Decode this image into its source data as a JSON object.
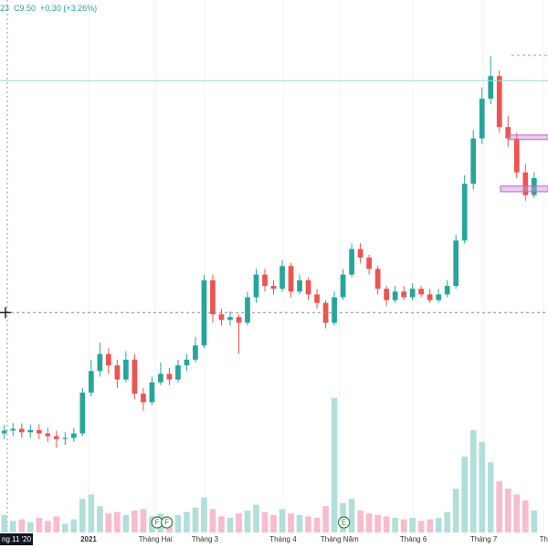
{
  "chart_data": {
    "type": "candlestick",
    "header": [
      "23",
      "C9.50",
      "+0.30 (+3.26%)"
    ],
    "header_color": "#26a69a",
    "up_color": "#26a69a",
    "down_color": "#ef5350",
    "volume_up_color": "#b2dfdb",
    "volume_down_color": "#f8bbd0",
    "open": [
      5.0,
      5.05,
      5.08,
      5.02,
      5.06,
      5.0,
      4.95,
      4.9,
      4.92,
      5.0,
      5.72,
      6.1,
      6.4,
      6.2,
      5.95,
      6.3,
      5.7,
      5.55,
      5.9,
      6.05,
      5.95,
      6.2,
      6.3,
      6.55,
      7.7,
      7.1,
      7.0,
      7.05,
      6.95,
      7.4,
      7.8,
      7.6,
      7.55,
      7.95,
      7.5,
      7.7,
      7.45,
      7.3,
      6.95,
      7.4,
      7.8,
      8.25,
      8.1,
      7.9,
      7.55,
      7.35,
      7.5,
      7.4,
      7.55,
      7.45,
      7.35,
      7.45,
      7.6,
      8.4,
      9.4,
      10.2,
      10.9,
      11.3,
      10.4,
      10.2,
      9.6,
      9.2
    ],
    "high": [
      5.15,
      5.18,
      5.18,
      5.16,
      5.16,
      5.1,
      5.05,
      5.02,
      5.1,
      5.8,
      6.3,
      6.6,
      6.5,
      6.3,
      6.45,
      6.4,
      5.8,
      6.0,
      6.25,
      6.15,
      6.3,
      6.4,
      6.7,
      7.8,
      7.8,
      7.2,
      7.15,
      7.1,
      7.5,
      7.9,
      7.9,
      7.7,
      8.05,
      8.0,
      7.8,
      7.75,
      7.55,
      7.35,
      7.5,
      7.9,
      8.35,
      8.35,
      8.15,
      7.95,
      7.6,
      7.6,
      7.6,
      7.65,
      7.6,
      7.55,
      7.55,
      7.7,
      8.5,
      9.55,
      10.35,
      11.1,
      11.65,
      11.4,
      10.6,
      10.3,
      9.75,
      9.6
    ],
    "low": [
      4.9,
      4.95,
      4.92,
      4.92,
      4.9,
      4.85,
      4.75,
      4.8,
      4.85,
      4.95,
      5.65,
      6.0,
      6.05,
      5.8,
      5.9,
      5.6,
      5.4,
      5.5,
      5.85,
      5.85,
      5.9,
      6.1,
      6.25,
      6.5,
      6.95,
      6.9,
      6.9,
      6.4,
      6.9,
      7.3,
      7.5,
      7.45,
      7.5,
      7.4,
      7.45,
      7.35,
      7.2,
      6.85,
      6.9,
      7.35,
      7.75,
      8.0,
      7.8,
      7.45,
      7.25,
      7.3,
      7.35,
      7.35,
      7.4,
      7.3,
      7.3,
      7.4,
      7.55,
      8.35,
      9.3,
      10.1,
      10.8,
      10.3,
      10.05,
      9.5,
      9.1,
      9.15
    ],
    "close": [
      5.05,
      5.08,
      5.02,
      5.06,
      5.0,
      4.95,
      4.9,
      4.92,
      5.0,
      5.72,
      6.1,
      6.4,
      6.2,
      5.95,
      6.3,
      5.7,
      5.55,
      5.9,
      6.05,
      5.95,
      6.2,
      6.3,
      6.55,
      7.7,
      7.1,
      7.0,
      7.05,
      6.95,
      7.4,
      7.8,
      7.6,
      7.55,
      7.95,
      7.5,
      7.7,
      7.45,
      7.3,
      6.95,
      7.4,
      7.8,
      8.25,
      8.1,
      7.9,
      7.55,
      7.35,
      7.5,
      7.4,
      7.55,
      7.45,
      7.35,
      7.45,
      7.6,
      8.4,
      9.4,
      10.2,
      10.9,
      11.3,
      10.4,
      10.2,
      9.6,
      9.2,
      9.5
    ],
    "volume": [
      120,
      80,
      90,
      70,
      100,
      80,
      110,
      60,
      90,
      230,
      260,
      180,
      130,
      140,
      120,
      150,
      160,
      110,
      130,
      100,
      120,
      140,
      170,
      240,
      160,
      110,
      100,
      130,
      150,
      190,
      140,
      120,
      160,
      130,
      120,
      110,
      100,
      180,
      920,
      200,
      230,
      150,
      130,
      120,
      110,
      100,
      90,
      100,
      80,
      90,
      100,
      140,
      300,
      520,
      700,
      620,
      480,
      350,
      300,
      260,
      220,
      150
    ],
    "xlim": [
      -0.5,
      62.6
    ],
    "ylim": [
      2.98,
      12.64
    ],
    "volume_ylim": [
      0,
      1000
    ],
    "xticks": [
      {
        "value": 9.7,
        "label": "2021"
      },
      {
        "value": 17.4,
        "label": "Tháng Hai"
      },
      {
        "value": 23.1,
        "label": "Tháng 3"
      },
      {
        "value": 32.1,
        "label": "Tháng 4"
      },
      {
        "value": 38.6,
        "label": "Tháng Năm"
      },
      {
        "value": 47.1,
        "label": "Tháng 6"
      },
      {
        "value": 55.2,
        "label": "Tháng 7"
      },
      {
        "value": 62.1,
        "label": "Th"
      }
    ],
    "crosshair_x_label": "ng 11 '20",
    "crosshair_y": 7.13,
    "price_lines": [
      {
        "value": 11.22,
        "color": "#9ad9d2"
      },
      {
        "value": 11.67,
        "color": "#e57ee0"
      }
    ],
    "zones": [
      [
        10.18,
        10.26
      ],
      [
        9.26,
        9.36
      ]
    ],
    "events": [
      {
        "label": "F",
        "x": 17.6
      },
      {
        "label": "F",
        "x": 18.7
      },
      {
        "label": "E",
        "x": 39.1
      }
    ]
  }
}
